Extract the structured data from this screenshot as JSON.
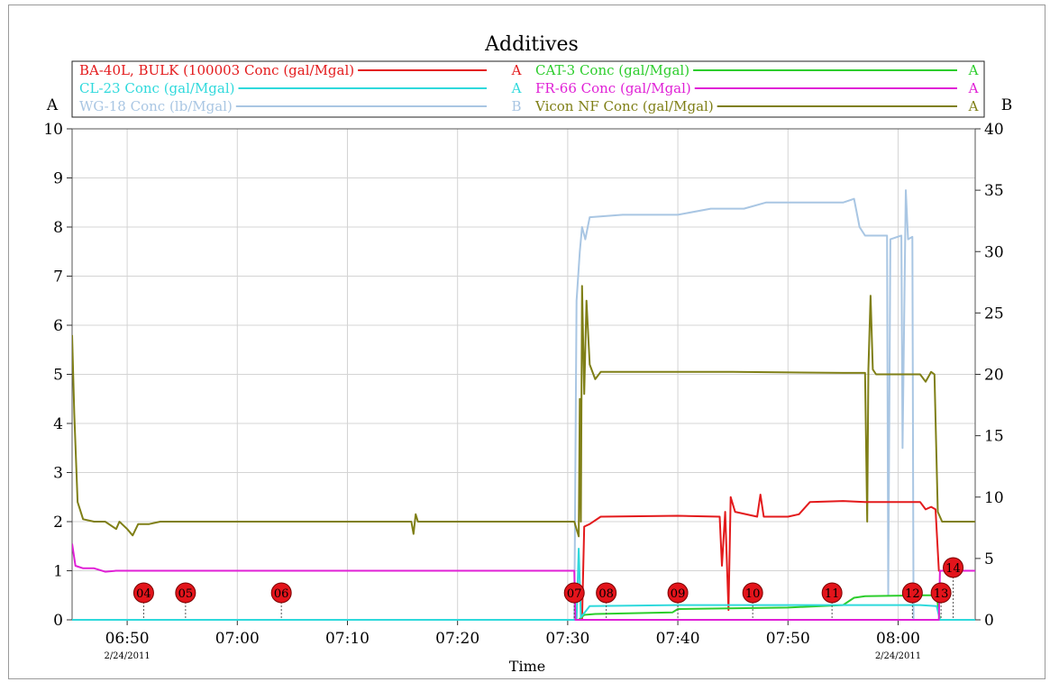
{
  "chart_data": {
    "type": "line",
    "title": "Additives",
    "xlabel": "Time",
    "left_axis_label": "A",
    "right_axis_label": "B",
    "left_ylim": [
      0,
      10
    ],
    "right_ylim": [
      0,
      40
    ],
    "left_ticks": [
      "0",
      "1",
      "2",
      "3",
      "4",
      "5",
      "6",
      "7",
      "8",
      "9",
      "10"
    ],
    "right_ticks": [
      "0",
      "5",
      "10",
      "15",
      "20",
      "25",
      "30",
      "35",
      "40"
    ],
    "x_ticks": [
      {
        "t": 50,
        "label": "06:50",
        "date": "2/24/2011"
      },
      {
        "t": 60,
        "label": "07:00",
        "date": ""
      },
      {
        "t": 70,
        "label": "07:10",
        "date": ""
      },
      {
        "t": 80,
        "label": "07:20",
        "date": ""
      },
      {
        "t": 90,
        "label": "07:30",
        "date": ""
      },
      {
        "t": 100,
        "label": "07:40",
        "date": ""
      },
      {
        "t": 110,
        "label": "07:50",
        "date": ""
      },
      {
        "t": 120,
        "label": "08:00",
        "date": "2/24/2011"
      }
    ],
    "x_unit_note": "x values are minutes past 06:00",
    "xlim": [
      45,
      127
    ],
    "grid": true,
    "legend": [
      {
        "name": "BA-40L, BULK (100003 Conc (gal/Mgal)",
        "axis": "A",
        "color": "#e31a1c"
      },
      {
        "name": "CAT-3 Conc (gal/Mgal)",
        "axis": "A",
        "color": "#2ccd2c"
      },
      {
        "name": "CL-23 Conc (gal/Mgal)",
        "axis": "A",
        "color": "#2fd9dc"
      },
      {
        "name": "FR-66 Conc (gal/Mgal)",
        "axis": "A",
        "color": "#e020d6"
      },
      {
        "name": "WG-18 Conc (lb/Mgal)",
        "axis": "B",
        "color": "#a9c6e3"
      },
      {
        "name": "Vicon NF Conc (gal/Mgal)",
        "axis": "A",
        "color": "#7f7f16"
      }
    ],
    "series": [
      {
        "name": "WG-18 Conc (lb/Mgal)",
        "axis": "B",
        "color": "#a9c6e3",
        "points": [
          [
            45,
            0
          ],
          [
            90.6,
            0
          ],
          [
            90.8,
            26
          ],
          [
            91.1,
            30
          ],
          [
            91.3,
            32
          ],
          [
            91.6,
            31
          ],
          [
            92,
            32.8
          ],
          [
            95,
            33
          ],
          [
            100,
            33
          ],
          [
            103,
            33.5
          ],
          [
            106,
            33.5
          ],
          [
            108,
            34
          ],
          [
            110,
            34
          ],
          [
            112,
            34
          ],
          [
            115,
            34
          ],
          [
            116,
            34.3
          ],
          [
            116.5,
            32
          ],
          [
            117,
            31.3
          ],
          [
            119,
            31.3
          ],
          [
            119.1,
            2
          ],
          [
            119.3,
            31
          ],
          [
            120.3,
            31.3
          ],
          [
            120.4,
            14
          ],
          [
            120.7,
            35
          ],
          [
            120.9,
            31
          ],
          [
            121.3,
            31.2
          ],
          [
            121.4,
            0
          ],
          [
            127,
            0
          ]
        ]
      },
      {
        "name": "Vicon NF Conc (gal/Mgal)",
        "axis": "A",
        "color": "#7f7f16",
        "points": [
          [
            45,
            5.8
          ],
          [
            45.2,
            4.2
          ],
          [
            45.5,
            2.4
          ],
          [
            46,
            2.05
          ],
          [
            47,
            2
          ],
          [
            48,
            2
          ],
          [
            49,
            1.85
          ],
          [
            49.3,
            2
          ],
          [
            50,
            1.85
          ],
          [
            50.5,
            1.72
          ],
          [
            51,
            1.95
          ],
          [
            52,
            1.95
          ],
          [
            53,
            2
          ],
          [
            60,
            2
          ],
          [
            70,
            2
          ],
          [
            75.8,
            2
          ],
          [
            76,
            1.75
          ],
          [
            76.2,
            2.15
          ],
          [
            76.4,
            2
          ],
          [
            90,
            2
          ],
          [
            90.6,
            2
          ],
          [
            91,
            1.7
          ],
          [
            91.1,
            4.5
          ],
          [
            91.2,
            2
          ],
          [
            91.3,
            6.8
          ],
          [
            91.5,
            4.6
          ],
          [
            91.7,
            6.5
          ],
          [
            92,
            5.2
          ],
          [
            92.5,
            4.9
          ],
          [
            93,
            5.05
          ],
          [
            100,
            5.05
          ],
          [
            105,
            5.05
          ],
          [
            115,
            5.03
          ],
          [
            117,
            5.03
          ],
          [
            117.2,
            2
          ],
          [
            117.3,
            5.1
          ],
          [
            117.5,
            6.6
          ],
          [
            117.7,
            5.1
          ],
          [
            118,
            5
          ],
          [
            122,
            5
          ],
          [
            122.5,
            4.85
          ],
          [
            123,
            5.05
          ],
          [
            123.3,
            5
          ],
          [
            123.6,
            2.2
          ],
          [
            124,
            2
          ],
          [
            127,
            2
          ]
        ]
      },
      {
        "name": "BA-40L, BULK (100003 Conc (gal/Mgal)",
        "axis": "A",
        "color": "#e31a1c",
        "points": [
          [
            45,
            0
          ],
          [
            91.3,
            0
          ],
          [
            91.5,
            1.9
          ],
          [
            92,
            1.95
          ],
          [
            93,
            2.1
          ],
          [
            100,
            2.12
          ],
          [
            103.8,
            2.1
          ],
          [
            104,
            1.1
          ],
          [
            104.3,
            2.2
          ],
          [
            104.6,
            0.2
          ],
          [
            104.8,
            2.5
          ],
          [
            105.2,
            2.2
          ],
          [
            107.2,
            2.1
          ],
          [
            107.5,
            2.55
          ],
          [
            107.8,
            2.1
          ],
          [
            110,
            2.1
          ],
          [
            111,
            2.15
          ],
          [
            112,
            2.4
          ],
          [
            115,
            2.42
          ],
          [
            117,
            2.4
          ],
          [
            122,
            2.4
          ],
          [
            122.5,
            2.25
          ],
          [
            123,
            2.3
          ],
          [
            123.4,
            2.25
          ],
          [
            123.7,
            1
          ],
          [
            127,
            1
          ]
        ]
      },
      {
        "name": "CAT-3 Conc (gal/Mgal)",
        "axis": "A",
        "color": "#2ccd2c",
        "points": [
          [
            45,
            0
          ],
          [
            91,
            0
          ],
          [
            91.5,
            0.1
          ],
          [
            92.5,
            0.12
          ],
          [
            99.5,
            0.15
          ],
          [
            100,
            0.22
          ],
          [
            110,
            0.25
          ],
          [
            115,
            0.3
          ],
          [
            116,
            0.45
          ],
          [
            117,
            0.48
          ],
          [
            122,
            0.5
          ],
          [
            123.5,
            0.5
          ],
          [
            123.8,
            0
          ],
          [
            127,
            0
          ]
        ]
      },
      {
        "name": "CL-23 Conc (gal/Mgal)",
        "axis": "A",
        "color": "#2fd9dc",
        "points": [
          [
            45,
            0
          ],
          [
            90.8,
            0
          ],
          [
            91,
            1.45
          ],
          [
            91.2,
            0.05
          ],
          [
            92,
            0.28
          ],
          [
            100,
            0.3
          ],
          [
            110,
            0.3
          ],
          [
            122,
            0.3
          ],
          [
            123.5,
            0.28
          ],
          [
            123.8,
            0
          ],
          [
            127,
            0
          ]
        ]
      },
      {
        "name": "FR-66 Conc (gal/Mgal)",
        "axis": "A",
        "color": "#e020d6",
        "points": [
          [
            45,
            1.55
          ],
          [
            45.3,
            1.1
          ],
          [
            46,
            1.05
          ],
          [
            47,
            1.05
          ],
          [
            48,
            0.98
          ],
          [
            49,
            1
          ],
          [
            60,
            1
          ],
          [
            70,
            1
          ],
          [
            80,
            1
          ],
          [
            90.6,
            1
          ],
          [
            90.7,
            0
          ],
          [
            123.7,
            0
          ],
          [
            123.8,
            1
          ],
          [
            127,
            1
          ]
        ]
      }
    ],
    "event_markers": [
      {
        "t": 51.5,
        "label": "04"
      },
      {
        "t": 55.3,
        "label": "05"
      },
      {
        "t": 64,
        "label": "06"
      },
      {
        "t": 90.6,
        "label": "07"
      },
      {
        "t": 93.5,
        "label": "08"
      },
      {
        "t": 100,
        "label": "09"
      },
      {
        "t": 106.8,
        "label": "10"
      },
      {
        "t": 114,
        "label": "11"
      },
      {
        "t": 121.3,
        "label": "12"
      },
      {
        "t": 123.9,
        "label": "13"
      },
      {
        "t": 125,
        "label": "14"
      }
    ]
  }
}
